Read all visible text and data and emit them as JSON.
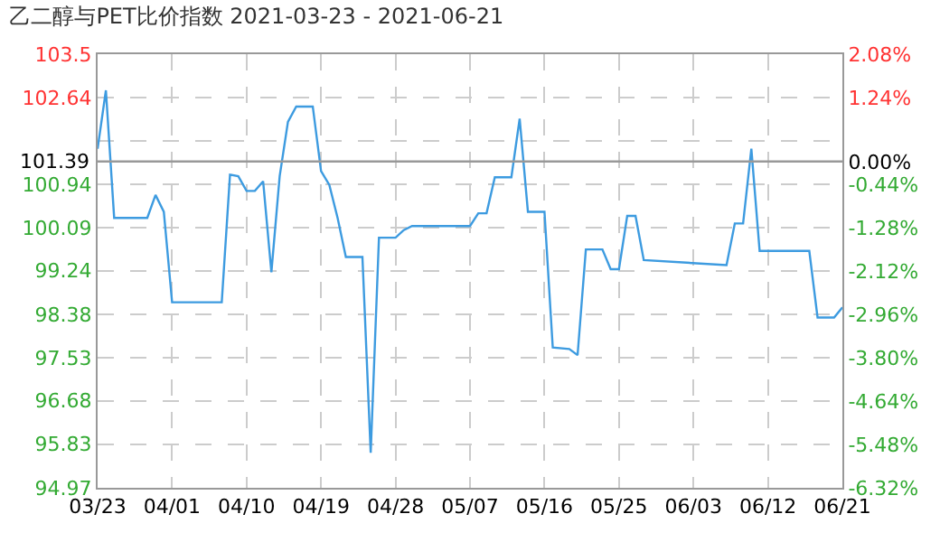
{
  "chart_data": {
    "type": "line",
    "title": "乙二醇与PET比价指数 2021-03-23 - 2021-06-21",
    "x": [
      "2021-03-23",
      "2021-03-24",
      "2021-03-25",
      "2021-03-29",
      "2021-03-30",
      "2021-03-31",
      "2021-04-01",
      "2021-04-07",
      "2021-04-08",
      "2021-04-09",
      "2021-04-10",
      "2021-04-11",
      "2021-04-12",
      "2021-04-13",
      "2021-04-14",
      "2021-04-15",
      "2021-04-16",
      "2021-04-18",
      "2021-04-19",
      "2021-04-20",
      "2021-04-21",
      "2021-04-22",
      "2021-04-24",
      "2021-04-25",
      "2021-04-26",
      "2021-04-28",
      "2021-04-29",
      "2021-04-30",
      "2021-05-07",
      "2021-05-08",
      "2021-05-09",
      "2021-05-10",
      "2021-05-12",
      "2021-05-13",
      "2021-05-14",
      "2021-05-16",
      "2021-05-17",
      "2021-05-19",
      "2021-05-20",
      "2021-05-21",
      "2021-05-23",
      "2021-05-24",
      "2021-05-25",
      "2021-05-26",
      "2021-05-27",
      "2021-05-28",
      "2021-06-07",
      "2021-06-08",
      "2021-06-09",
      "2021-06-10",
      "2021-06-11",
      "2021-06-17",
      "2021-06-18",
      "2021-06-20",
      "2021-06-21"
    ],
    "series": [
      {
        "color": "#3d9be0",
        "values": [
          101.64,
          102.79,
          100.28,
          100.28,
          100.73,
          100.4,
          98.62,
          98.62,
          101.13,
          101.1,
          100.81,
          100.81,
          101.0,
          99.21,
          101.1,
          102.17,
          102.47,
          102.47,
          101.2,
          100.93,
          100.28,
          99.51,
          99.51,
          95.66,
          99.89,
          99.89,
          100.04,
          100.12,
          100.12,
          100.37,
          100.37,
          101.08,
          101.08,
          102.23,
          100.4,
          100.4,
          97.73,
          97.7,
          97.58,
          99.66,
          99.66,
          99.27,
          99.27,
          100.32,
          100.32,
          99.45,
          99.35,
          100.17,
          100.17,
          101.64,
          99.63,
          99.63,
          98.32,
          98.32,
          98.52
        ]
      }
    ],
    "xlim": [
      "2021-03-23",
      "2021-06-21"
    ],
    "xticks": [
      {
        "value": "2021-03-23",
        "label": "03/23"
      },
      {
        "value": "2021-04-01",
        "label": "04/01"
      },
      {
        "value": "2021-04-10",
        "label": "04/10"
      },
      {
        "value": "2021-04-19",
        "label": "04/19"
      },
      {
        "value": "2021-04-28",
        "label": "04/28"
      },
      {
        "value": "2021-05-07",
        "label": "05/07"
      },
      {
        "value": "2021-05-16",
        "label": "05/16"
      },
      {
        "value": "2021-05-25",
        "label": "05/25"
      },
      {
        "value": "2021-06-03",
        "label": "06/03"
      },
      {
        "value": "2021-06-12",
        "label": "06/12"
      },
      {
        "value": "2021-06-21",
        "label": "06/21"
      }
    ],
    "ylim": [
      94.97,
      103.5
    ],
    "yticks": [
      94.97,
      95.83,
      96.68,
      97.53,
      98.38,
      99.24,
      100.09,
      100.94,
      {
        "value": 101.79,
        "label": null
      },
      102.64,
      103.5
    ],
    "y2lim": [
      -6.32,
      2.08
    ],
    "y2ticks": [
      {
        "value": -6.32,
        "label": "-6.32%"
      },
      {
        "value": -5.48,
        "label": "-5.48%"
      },
      {
        "value": -4.64,
        "label": "-4.64%"
      },
      {
        "value": -3.8,
        "label": "-3.80%"
      },
      {
        "value": -2.96,
        "label": "-2.96%"
      },
      {
        "value": -2.12,
        "label": "-2.12%"
      },
      {
        "value": -1.28,
        "label": "-1.28%"
      },
      {
        "value": -0.44,
        "label": "-0.44%"
      },
      {
        "value": 0,
        "label": "0.00%"
      },
      {
        "value": 0.4,
        "label": null
      },
      {
        "value": 1.24,
        "label": "1.24%"
      },
      {
        "value": 2.08,
        "label": "2.08%"
      }
    ],
    "ref_lines": [
      {
        "axis": "y",
        "value": 101.39,
        "label": "101.39",
        "color": "#999999"
      }
    ],
    "grid": true,
    "legend": false,
    "marker": "none",
    "line_style": "solid"
  }
}
